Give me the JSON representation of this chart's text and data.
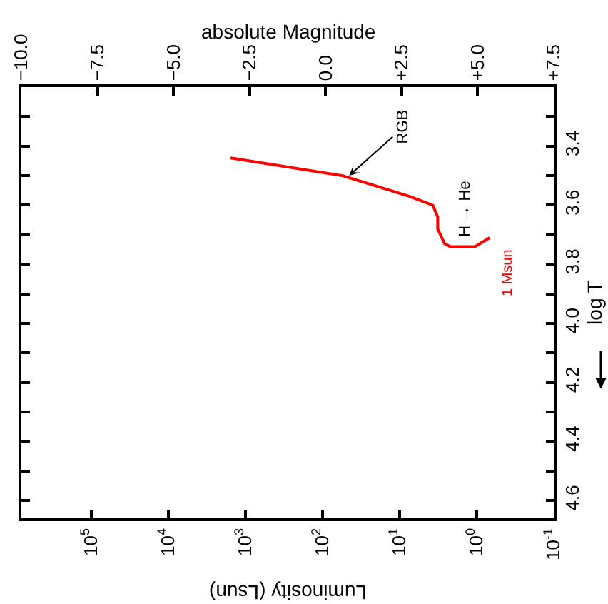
{
  "chart_data": {
    "type": "line",
    "xlabel": "Luminosity (Lsun)",
    "ylabel": "log T",
    "x2label": "absolute Magnitude",
    "log": "x",
    "x": [
      1550,
      55,
      7.4,
      3.7,
      3.2,
      3.2,
      2.6,
      2.2,
      1.05,
      0.68
    ],
    "series": [
      {
        "name": "1 Msun",
        "color": "#ff0000",
        "values": [
          3.44,
          3.5,
          3.57,
          3.6,
          3.64,
          3.68,
          3.73,
          3.74,
          3.74,
          3.71
        ]
      }
    ],
    "xlim": [
      800000,
      0.1
    ],
    "xticks": [
      {
        "value": 100000,
        "label": "10$^{5}$"
      },
      {
        "value": 10000,
        "label": "10$^{4}$"
      },
      {
        "value": 1000,
        "label": "10$^{3}$"
      },
      {
        "value": 100,
        "label": "10$^{2}$"
      },
      {
        "value": 10,
        "label": "10$^{1}$"
      },
      {
        "value": 1,
        "label": "10$^{0}$"
      },
      {
        "value": 0.1,
        "label": "10$^{-1}$"
      }
    ],
    "ylim": [
      4.66,
      3.2
    ],
    "yticks": [
      {
        "value": 3.3,
        "label": null
      },
      3.4,
      {
        "value": 3.5,
        "label": null
      },
      3.6,
      {
        "value": 3.7,
        "label": null
      },
      3.8,
      {
        "value": 3.9,
        "label": null
      },
      {
        "value": 4.0,
        "label": "4.0"
      },
      {
        "value": 4.1,
        "label": null
      },
      4.2,
      {
        "value": 4.3,
        "label": null
      },
      4.4,
      {
        "value": 4.5,
        "label": null
      },
      4.6
    ],
    "x2lim": [
      -10,
      7.5
    ],
    "x2ticks": [
      {
        "value": -10,
        "label": "−10.0"
      },
      {
        "value": -7.5,
        "label": "−7.5"
      },
      {
        "value": -5,
        "label": "−5.0"
      },
      {
        "value": -2.5,
        "label": "−2.5"
      },
      {
        "value": 0,
        "label": "0.0"
      },
      {
        "value": 2.5,
        "label": "+2.5"
      },
      {
        "value": 5,
        "label": "+5.0"
      },
      {
        "value": 7.5,
        "label": "+7.5"
      }
    ],
    "grid": false,
    "legend": false,
    "marker": "none",
    "line_style": "solid",
    "annotations": [
      {
        "text": "RGB",
        "x": 45,
        "y": 3.5
      },
      "H → He"
    ]
  }
}
